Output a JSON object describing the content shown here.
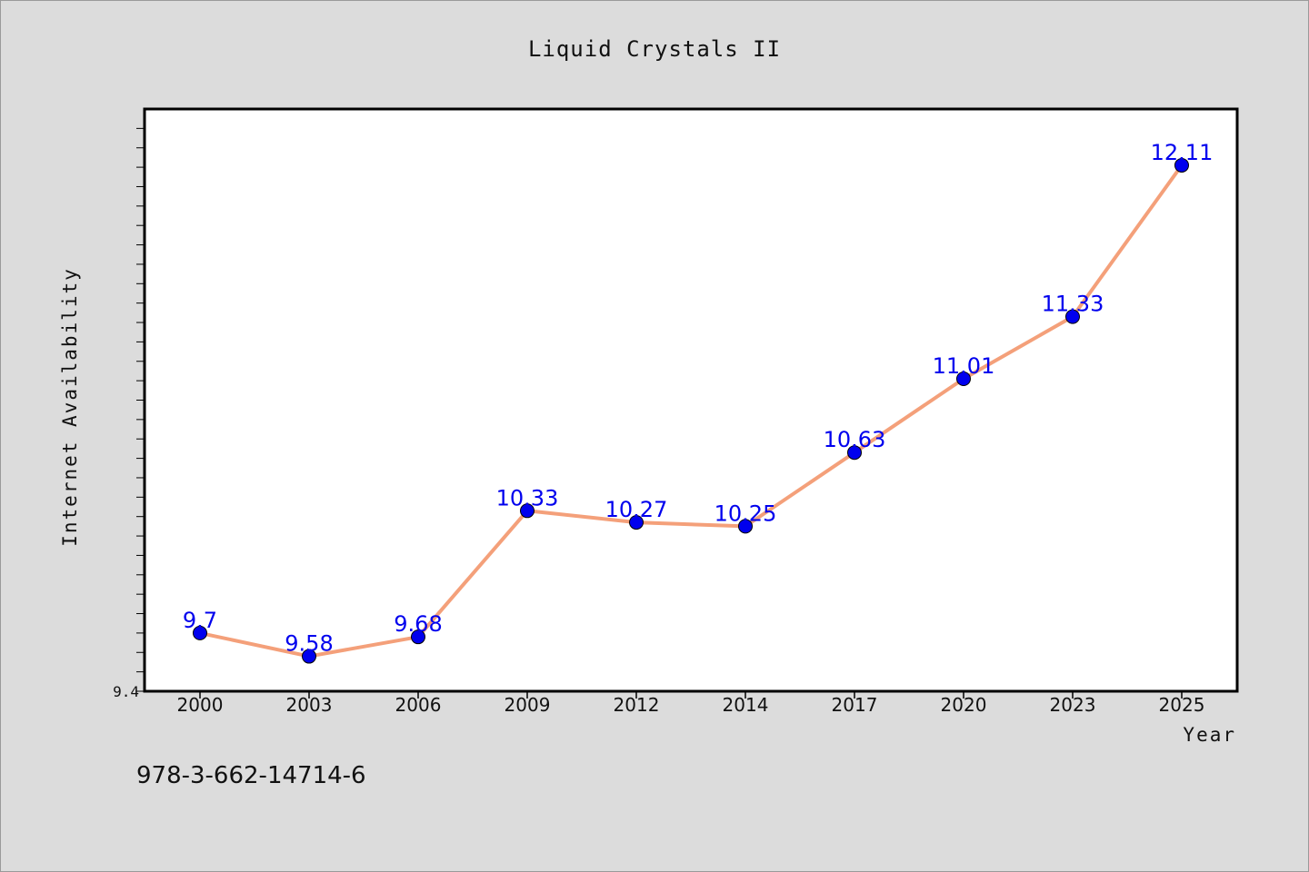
{
  "chart_data": {
    "type": "line",
    "title": "Liquid Crystals II",
    "xlabel": "Year",
    "ylabel": "Internet Availability",
    "categories": [
      "2000",
      "2003",
      "2006",
      "2009",
      "2012",
      "2014",
      "2017",
      "2020",
      "2023",
      "2025"
    ],
    "series": [
      {
        "values": [
          9.7,
          9.58,
          9.68,
          10.33,
          10.27,
          10.25,
          10.63,
          11.01,
          11.33,
          12.11
        ]
      }
    ],
    "ylim": [
      9.4,
      12.4
    ],
    "ytick_labels": [
      "9.4"
    ],
    "y_minor_tick_step": 0.1,
    "grid": false,
    "line_color": "#f4a07a",
    "marker_color": "#0000ee",
    "label_color": "#0000ee"
  },
  "footer": {
    "isbn": "978-3-662-14714-6"
  }
}
